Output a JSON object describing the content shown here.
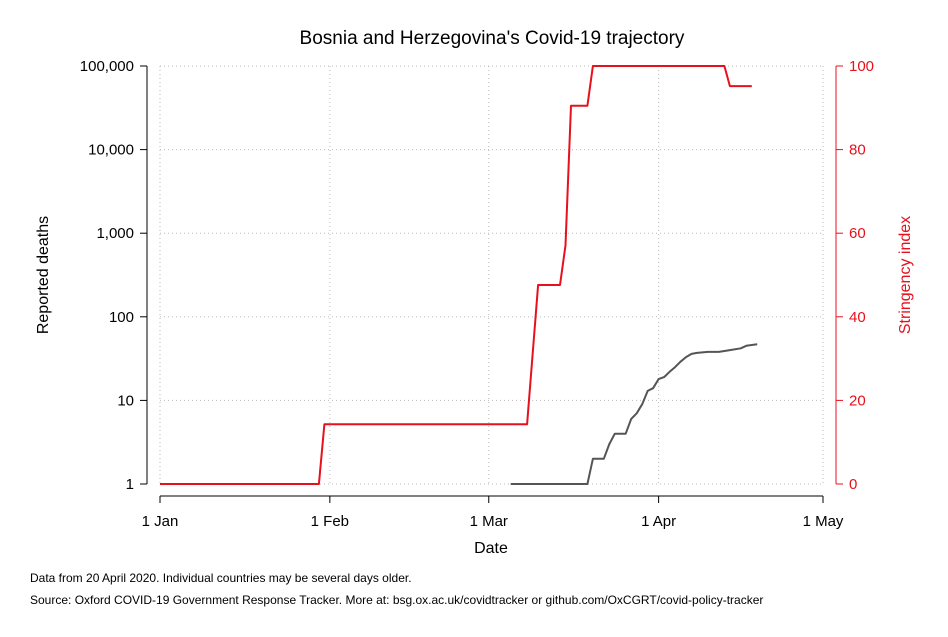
{
  "chart_data": {
    "type": "line",
    "title": "Bosnia and Herzegovina's Covid-19 trajectory",
    "xlabel": "Date",
    "ylabel_left": "Reported deaths",
    "ylabel_right": "Stringency index",
    "x_ticks": [
      "1 Jan",
      "1 Feb",
      "1 Mar",
      "1 Apr",
      "1 May"
    ],
    "x_range": [
      "2020-01-01",
      "2020-05-01"
    ],
    "left_axis": {
      "scale": "log",
      "ticks": [
        "1",
        "10",
        "100",
        "1,000",
        "10,000",
        "100,000"
      ],
      "range": [
        1,
        100000
      ]
    },
    "right_axis": {
      "scale": "linear",
      "ticks": [
        "0",
        "20",
        "40",
        "60",
        "80",
        "100"
      ],
      "range": [
        0,
        100
      ]
    },
    "grid": true,
    "colors": {
      "deaths": "#555555",
      "stringency": "#e8101c",
      "grid": "#bbbbbb"
    },
    "series": [
      {
        "axis": "right",
        "color": "#e8101c",
        "points": [
          [
            "2020-01-01",
            0
          ],
          [
            "2020-01-30",
            0
          ],
          [
            "2020-01-31",
            14.3
          ],
          [
            "2020-03-08",
            14.3
          ],
          [
            "2020-03-10",
            47.6
          ],
          [
            "2020-03-14",
            47.6
          ],
          [
            "2020-03-15",
            57.1
          ],
          [
            "2020-03-16",
            90.5
          ],
          [
            "2020-03-19",
            90.5
          ],
          [
            "2020-03-20",
            100
          ],
          [
            "2020-04-13",
            100
          ],
          [
            "2020-04-14",
            95.2
          ],
          [
            "2020-04-18",
            95.2
          ]
        ]
      },
      {
        "axis": "left",
        "color": "#555555",
        "points": [
          [
            "2020-03-05",
            1
          ],
          [
            "2020-03-19",
            1
          ],
          [
            "2020-03-20",
            2
          ],
          [
            "2020-03-22",
            2
          ],
          [
            "2020-03-23",
            3
          ],
          [
            "2020-03-24",
            4
          ],
          [
            "2020-03-26",
            4
          ],
          [
            "2020-03-27",
            6
          ],
          [
            "2020-03-28",
            7
          ],
          [
            "2020-03-29",
            9
          ],
          [
            "2020-03-30",
            13
          ],
          [
            "2020-03-31",
            14
          ],
          [
            "2020-04-01",
            18
          ],
          [
            "2020-04-02",
            19
          ],
          [
            "2020-04-03",
            22
          ],
          [
            "2020-04-04",
            25
          ],
          [
            "2020-04-05",
            29
          ],
          [
            "2020-04-06",
            33
          ],
          [
            "2020-04-07",
            36
          ],
          [
            "2020-04-08",
            37
          ],
          [
            "2020-04-10",
            38
          ],
          [
            "2020-04-12",
            38
          ],
          [
            "2020-04-14",
            40
          ],
          [
            "2020-04-16",
            42
          ],
          [
            "2020-04-17",
            45
          ],
          [
            "2020-04-19",
            47
          ]
        ]
      }
    ]
  },
  "notes": {
    "data_note": "Data from 20 April 2020. Individual countries may be several days older.",
    "source_note": "Source: Oxford COVID-19 Government Response Tracker. More at: bsg.ox.ac.uk/covidtracker or github.com/OxCGRT/covid-policy-tracker"
  }
}
